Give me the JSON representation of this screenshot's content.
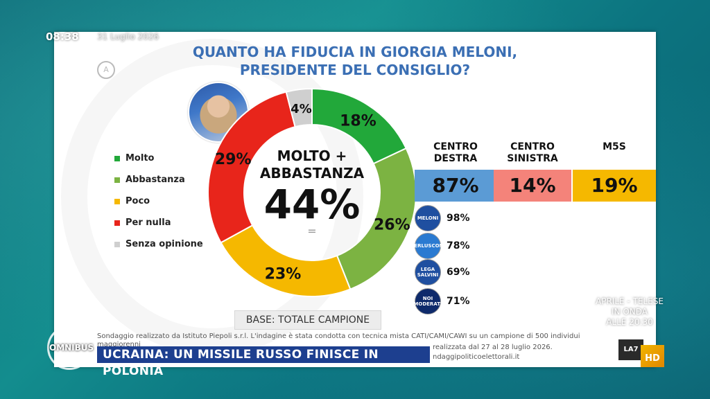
{
  "overlay": {
    "clock": "08:38",
    "date": "31 Luglio 2026",
    "channel_logo": "A",
    "program": "OMNIBUS",
    "ticker": "UCRAINA: UN MISSILE RUSSO FINISCE IN POLONIA",
    "promo": [
      "APRILE - TELESE",
      "IN ONDA",
      "ALLE 20:30"
    ],
    "hd_label": "HD",
    "network_label": "LA7"
  },
  "poll": {
    "title_line1": "QUANTO HA FIDUCIA IN GIORGIA MELONI,",
    "title_line2": "PRESIDENTE DEL CONSIGLIO?",
    "center_label_line1": "MOLTO +",
    "center_label_line2": "ABBASTANZA",
    "center_value": "44%",
    "center_eq": "=",
    "base": "BASE: TOTALE CAMPIONE",
    "legend": [
      {
        "label": "Molto",
        "color": "#22a83a"
      },
      {
        "label": "Abbastanza",
        "color": "#7cb342"
      },
      {
        "label": "Poco",
        "color": "#f5b800"
      },
      {
        "label": "Per nulla",
        "color": "#e8251b"
      },
      {
        "label": "Senza opinione",
        "color": "#cfcfcf"
      }
    ]
  },
  "chart_data": {
    "type": "pie",
    "categories": [
      "Molto",
      "Abbastanza",
      "Poco",
      "Per nulla",
      "Senza opinione"
    ],
    "values": [
      18,
      26,
      23,
      29,
      4
    ],
    "labels": [
      "18%",
      "26%",
      "23%",
      "29%",
      "4%"
    ],
    "colors": [
      "#22a83a",
      "#7cb342",
      "#f5b800",
      "#e8251b",
      "#cfcfcf"
    ]
  },
  "coalitions": [
    {
      "name_line1": "CENTRO",
      "name_line2": "DESTRA",
      "value": "87%",
      "color": "#5b9bd5"
    },
    {
      "name_line1": "CENTRO",
      "name_line2": "SINISTRA",
      "value": "14%",
      "color": "#f4837a"
    },
    {
      "name_line1": "M5S",
      "name_line2": "",
      "value": "19%",
      "color": "#f5b800"
    }
  ],
  "parties": [
    {
      "logo_text": "MELONI",
      "value": "98%",
      "logo_color": "#1f4fa0"
    },
    {
      "logo_text": "BERLUSCONI",
      "value": "78%",
      "logo_color": "#2a7ad1"
    },
    {
      "logo_text": "LEGA SALVINI",
      "value": "69%",
      "logo_color": "#1f4fa0"
    },
    {
      "logo_text": "NOI MODERATI",
      "value": "71%",
      "logo_color": "#0e2a6b"
    }
  ],
  "footnote": {
    "line1": "Sondaggio realizzato da Istituto Piepoli s.r.l. L'indagine è stata condotta con tecnica mista CATI/CAMI/CAWI su un campione di 500 individui maggiorenni",
    "line2": "realizzata dal 27 al 28 luglio 2026.",
    "line3": "ndaggipoliticoelettorali.it"
  }
}
